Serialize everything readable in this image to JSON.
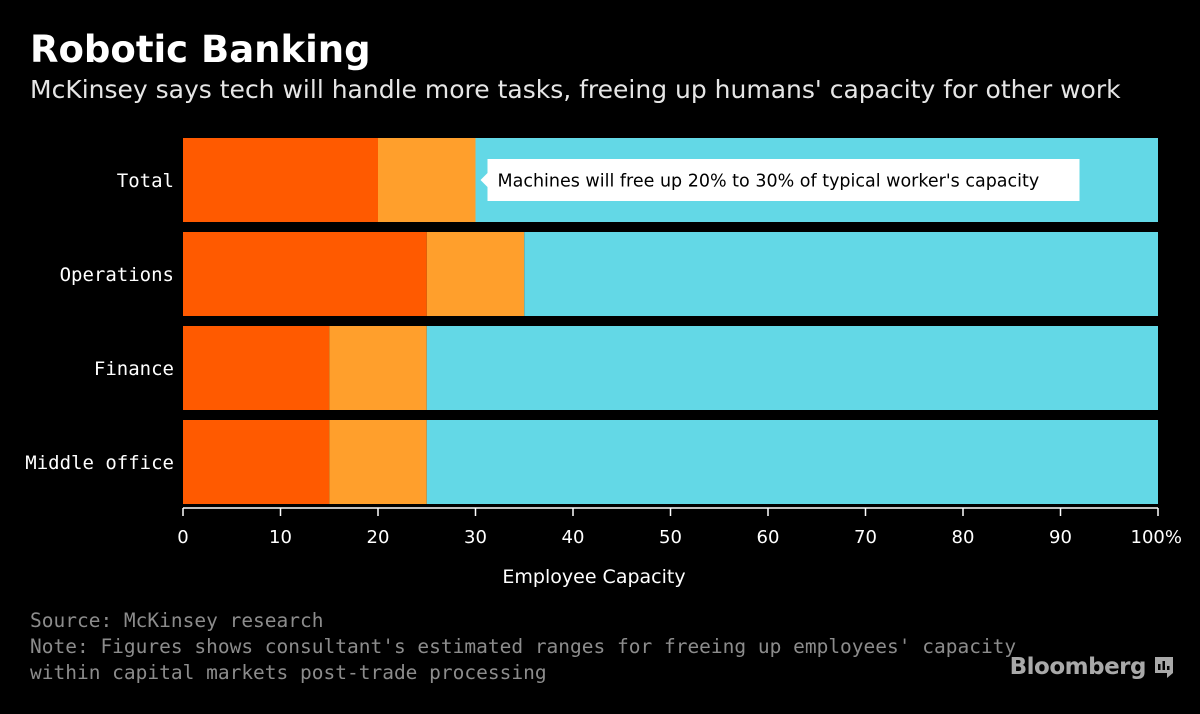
{
  "header": {
    "title": "Robotic Banking",
    "subtitle": "McKinsey says tech will handle more tasks, freeing up humans' capacity for other work"
  },
  "chart_data": {
    "type": "bar",
    "orientation": "horizontal",
    "stacked": true,
    "categories": [
      "Total",
      "Operations",
      "Finance",
      "Middle office"
    ],
    "series": [
      {
        "values": [
          20,
          25,
          15,
          15
        ],
        "color": "#ff5a00"
      },
      {
        "values": [
          10,
          10,
          10,
          10
        ],
        "color": "#ff9f2c"
      },
      {
        "values": [
          70,
          65,
          75,
          75
        ],
        "color": "#63d8e6"
      }
    ],
    "xlabel": "Employee Capacity",
    "xlim": [
      0,
      100
    ],
    "x_ticks": [
      "0",
      "10",
      "20",
      "30",
      "40",
      "50",
      "60",
      "70",
      "80",
      "90",
      "100%"
    ],
    "annotation": {
      "text": "Machines will free up 20% to 30% of typical worker's capacity",
      "category": "Total",
      "x": 30
    },
    "grid": false,
    "legend": "none"
  },
  "footer": {
    "source": "Source: McKinsey research",
    "note_line1": "Note: Figures shows consultant's estimated ranges for freeing up employees' capacity",
    "note_line2": "within capital markets post-trade processing"
  },
  "branding": {
    "logo_text": "Bloomberg",
    "logo_icon": "bloomberg-terminal-icon"
  }
}
